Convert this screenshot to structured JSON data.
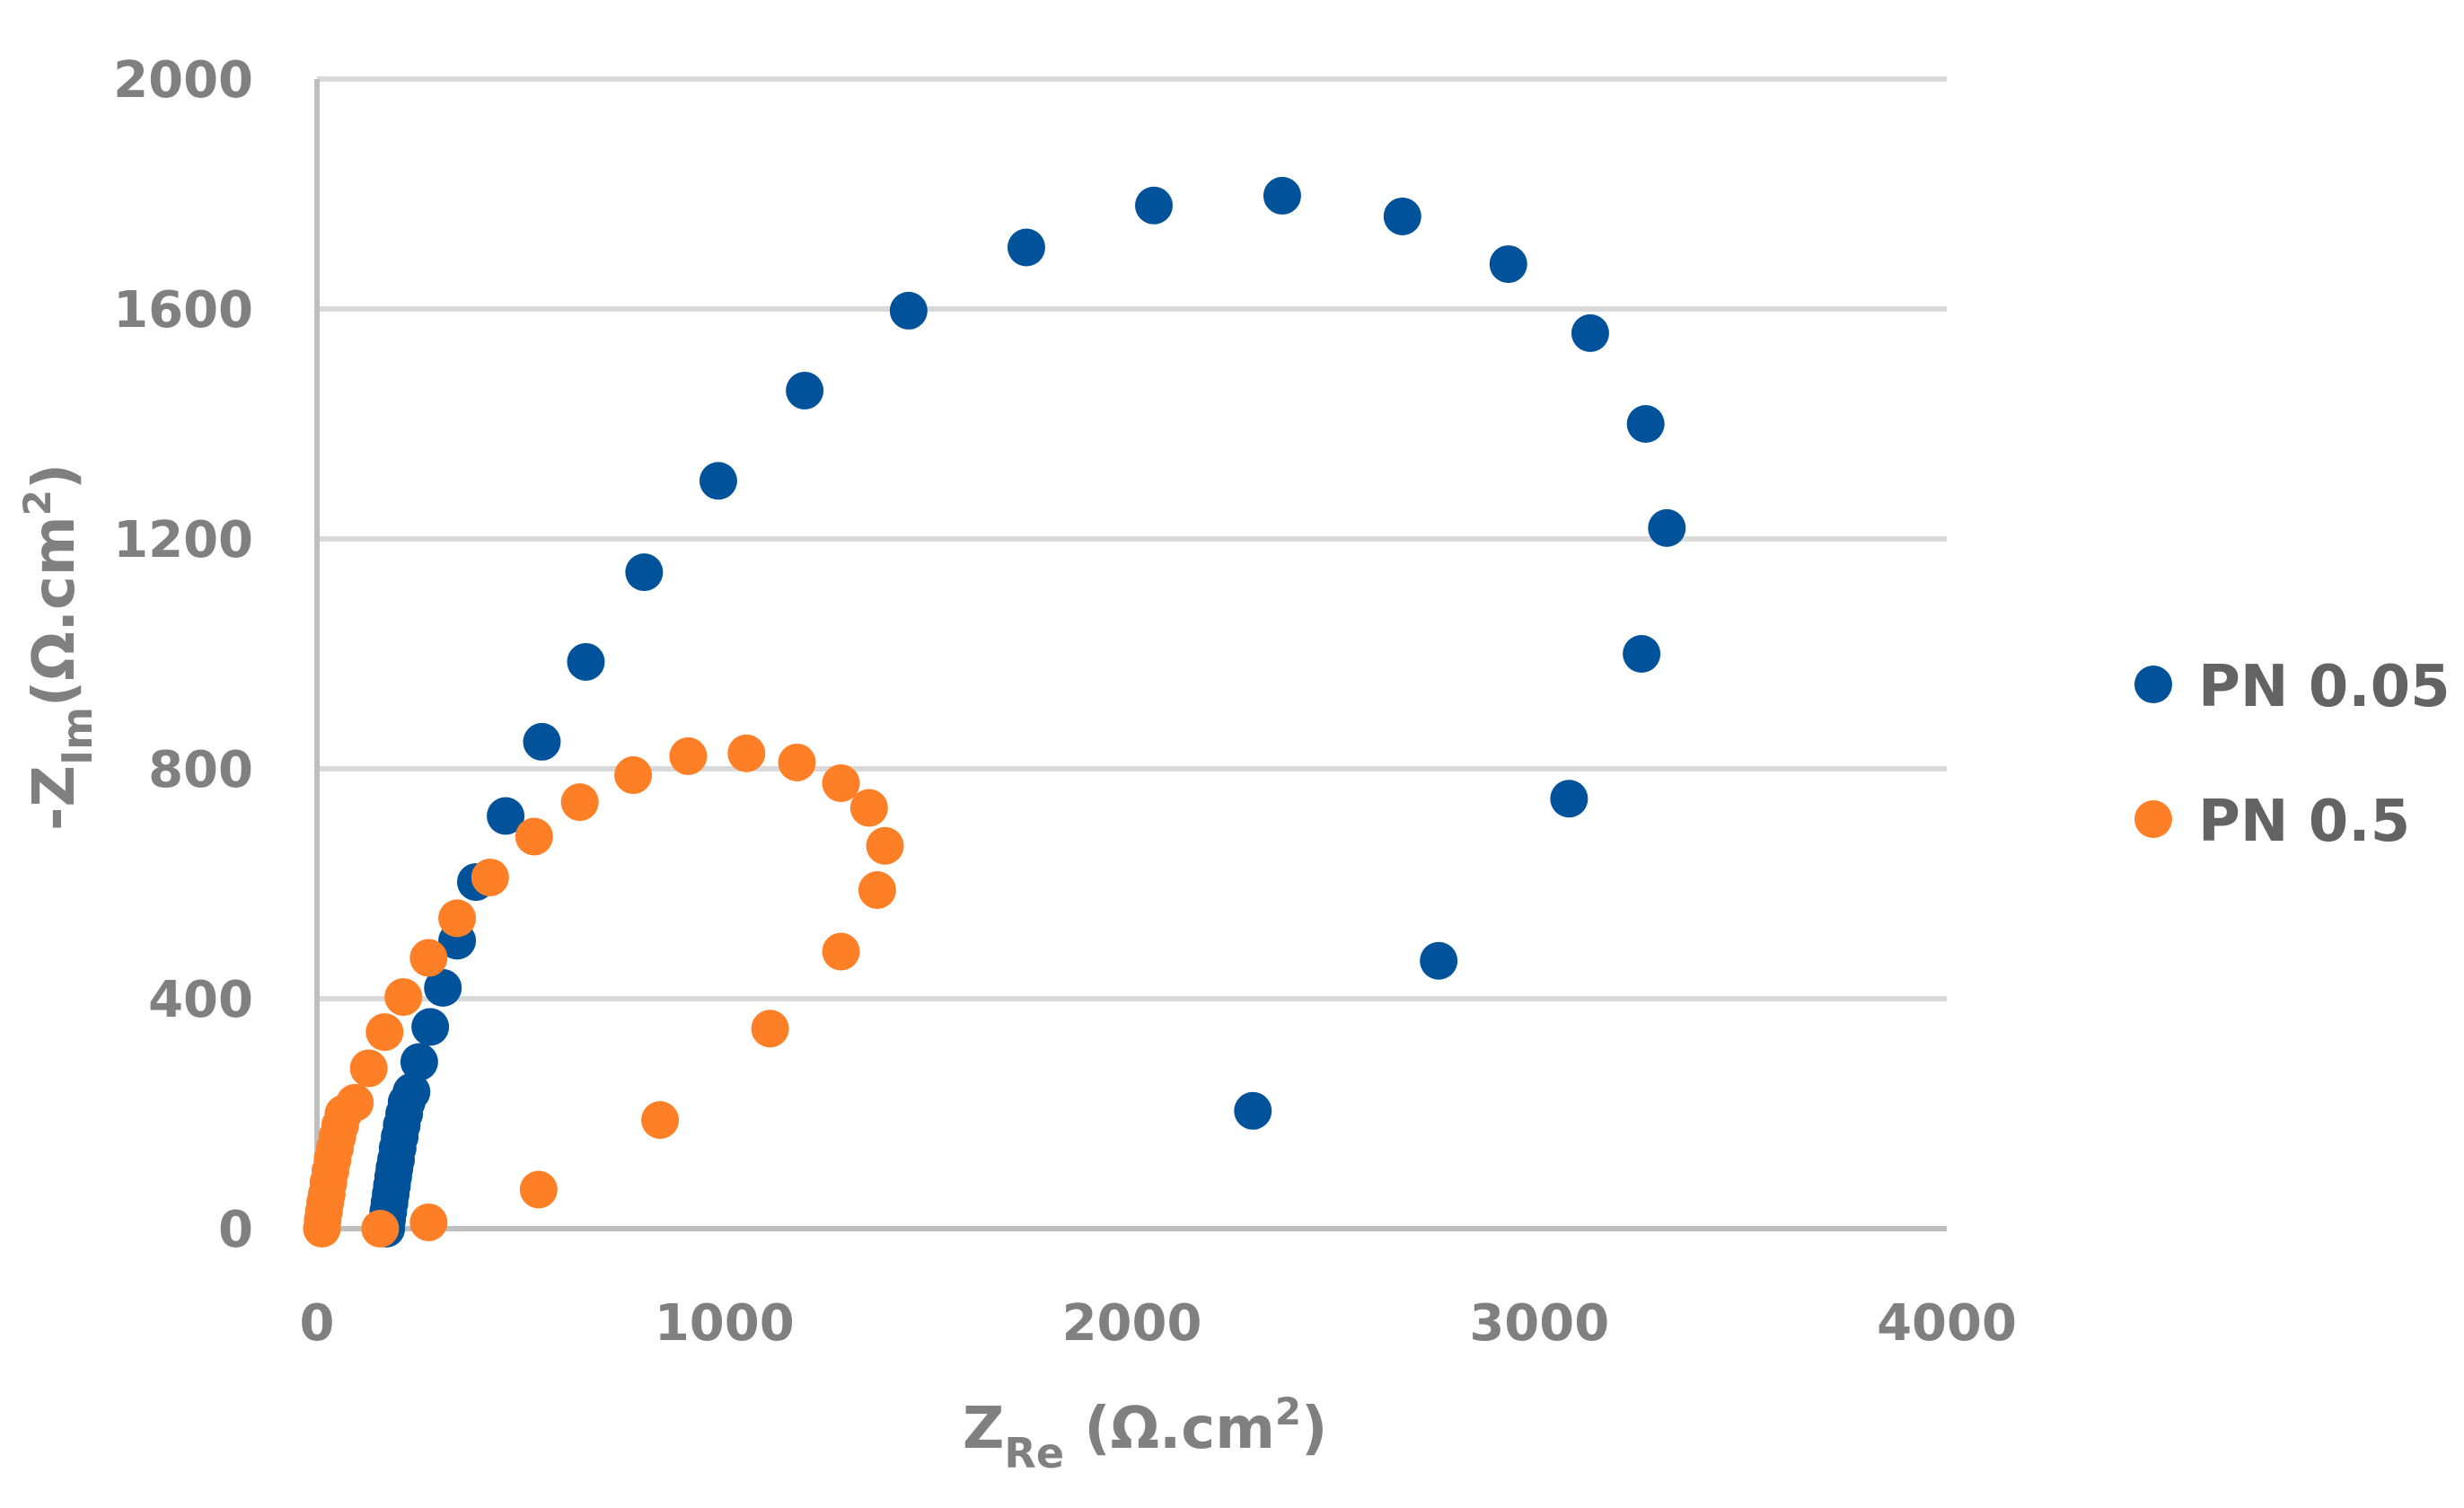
{
  "chart_data": {
    "type": "scatter",
    "title": "",
    "xlabel": "Z_Re (Ω.cm²)",
    "ylabel": "-Z_Im (Ω.cm²)",
    "xlim": [
      0,
      4000
    ],
    "ylim": [
      0,
      2000
    ],
    "x_ticks": [
      0,
      1000,
      2000,
      3000,
      4000
    ],
    "y_ticks": [
      0,
      400,
      800,
      1200,
      1600,
      2000
    ],
    "grid": "horizontal",
    "legend_position": "right",
    "series": [
      {
        "name": "PN 0.05",
        "color": "#00539B",
        "points": [
          [
            170,
            0
          ],
          [
            172,
            15
          ],
          [
            175,
            30
          ],
          [
            178,
            45
          ],
          [
            181,
            60
          ],
          [
            184,
            75
          ],
          [
            187,
            90
          ],
          [
            190,
            105
          ],
          [
            194,
            120
          ],
          [
            198,
            140
          ],
          [
            203,
            160
          ],
          [
            208,
            180
          ],
          [
            214,
            200
          ],
          [
            220,
            220
          ],
          [
            232,
            238
          ],
          [
            251,
            290
          ],
          [
            278,
            351
          ],
          [
            309,
            419
          ],
          [
            344,
            501
          ],
          [
            390,
            603
          ],
          [
            463,
            718
          ],
          [
            552,
            847
          ],
          [
            660,
            986
          ],
          [
            803,
            1142
          ],
          [
            985,
            1301
          ],
          [
            1197,
            1458
          ],
          [
            1452,
            1597
          ],
          [
            1741,
            1707
          ],
          [
            2054,
            1780
          ],
          [
            2369,
            1797
          ],
          [
            2664,
            1761
          ],
          [
            2924,
            1678
          ],
          [
            3125,
            1558
          ],
          [
            3261,
            1400
          ],
          [
            3313,
            1219
          ],
          [
            3251,
            1000
          ],
          [
            3073,
            748
          ],
          [
            2753,
            466
          ],
          [
            2297,
            205
          ]
        ]
      },
      {
        "name": "PN 0.5",
        "color": "#FF7F27",
        "points": [
          [
            12,
            0
          ],
          [
            14,
            15
          ],
          [
            17,
            30
          ],
          [
            20,
            45
          ],
          [
            24,
            60
          ],
          [
            28,
            80
          ],
          [
            33,
            100
          ],
          [
            38,
            120
          ],
          [
            44,
            140
          ],
          [
            50,
            160
          ],
          [
            57,
            180
          ],
          [
            65,
            200
          ],
          [
            93,
            219
          ],
          [
            127,
            279
          ],
          [
            166,
            342
          ],
          [
            212,
            403
          ],
          [
            274,
            471
          ],
          [
            344,
            540
          ],
          [
            425,
            611
          ],
          [
            533,
            682
          ],
          [
            645,
            742
          ],
          [
            776,
            789
          ],
          [
            911,
            822
          ],
          [
            1054,
            827
          ],
          [
            1178,
            811
          ],
          [
            1286,
            775
          ],
          [
            1355,
            732
          ],
          [
            1394,
            666
          ],
          [
            1375,
            589
          ],
          [
            1286,
            482
          ],
          [
            1112,
            348
          ],
          [
            842,
            189
          ],
          [
            544,
            68
          ],
          [
            274,
            11
          ],
          [
            155,
            0
          ]
        ]
      }
    ]
  },
  "axes": {
    "x_title_main": "Z",
    "x_title_sub": "Re",
    "x_title_unit": " (Ω.cm",
    "x_title_sup": "2",
    "x_title_close": ")",
    "y_title_main": "-Z",
    "y_title_sub": "Im",
    "y_title_unit": "(Ω.cm",
    "y_title_sup": "2",
    "y_title_close": ")",
    "x_tick_labels": [
      "0",
      "1000",
      "2000",
      "3000",
      "4000"
    ],
    "y_tick_labels": [
      "0",
      "400",
      "800",
      "1200",
      "1600",
      "2000"
    ]
  },
  "legend": {
    "items": [
      {
        "label": "PN 0.05",
        "color": "#00539B"
      },
      {
        "label": "PN 0.5",
        "color": "#FF7F27"
      }
    ]
  },
  "style": {
    "gridline_color": "#D9D9D9",
    "axis_color": "#BFBFBF",
    "text_color": "#808080"
  }
}
